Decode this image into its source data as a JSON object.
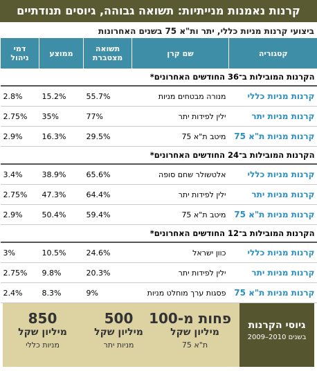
{
  "header": {
    "title": "קרנות נאמנות מנייתיות: תשואה גבוהה, גיוסים תנודתיים",
    "subtitle": "ביצועי קרנות מניות כללי, יתר ות\"א 75 בשנים האחרונות"
  },
  "table": {
    "columns": [
      "קטגוריה",
      "שם קרן",
      "תשואה מצטברת",
      "ממוצע",
      "דמי ניהול"
    ],
    "sections": [
      {
        "title": "הקרנות המובילות ב־36 החודשים האחרונים*",
        "rows": [
          [
            "קרנות מניות כללי",
            "מנורה מבטחים מניות",
            "55.7%",
            "15.2%",
            "2.8%"
          ],
          [
            "קרנות מניות יתר",
            "ילין לפידות יתר",
            "77%",
            "35%",
            "2.75%"
          ],
          [
            "קרנות מניות ת\"א 75",
            "מיטב ת\"א 75",
            "29.5%",
            "16.3%",
            "2.9%"
          ]
        ]
      },
      {
        "title": "הקרנות המובילות ב־24 החודשים האחרונים*",
        "rows": [
          [
            "קרנות מניות כללי",
            "אלטשולר שחם סופה",
            "65.6%",
            "38.9%",
            "3.4%"
          ],
          [
            "קרנות מניות יתר",
            "ילין לפידות יתר",
            "64.4%",
            "47.3%",
            "2.75%"
          ],
          [
            "קרנות מניות ת\"א 75",
            "מיטב ת\"א 75",
            "59.4%",
            "50.4%",
            "2.9%"
          ]
        ]
      },
      {
        "title": "הקרנות המובילות ב־12 החודשים האחרונים*",
        "rows": [
          [
            "קרנות מניות כללי",
            "כוון ישראל",
            "24.6%",
            "10.5%",
            "3%"
          ],
          [
            "קרנות מניות יתר",
            "ילין לפידות יתר",
            "20.3%",
            "9.8%",
            "2.75%"
          ],
          [
            "קרנות מניות ת\"א 75",
            "פסגות ערך מוחלט מניות",
            "9%",
            "8.3%",
            "2.4%"
          ]
        ]
      }
    ]
  },
  "footer": {
    "label": "גיוסי הקרנות",
    "years": "בשנים 2010–2009",
    "items": [
      {
        "amount": "פחות מ-100",
        "unit": "מיליון שקל",
        "category": "ת\"א 75"
      },
      {
        "amount": "500",
        "unit": "מיליון שקל",
        "category": "מניות יתר"
      },
      {
        "amount": "850",
        "unit": "מיליון שקל",
        "category": "מניות כללי"
      }
    ]
  }
}
